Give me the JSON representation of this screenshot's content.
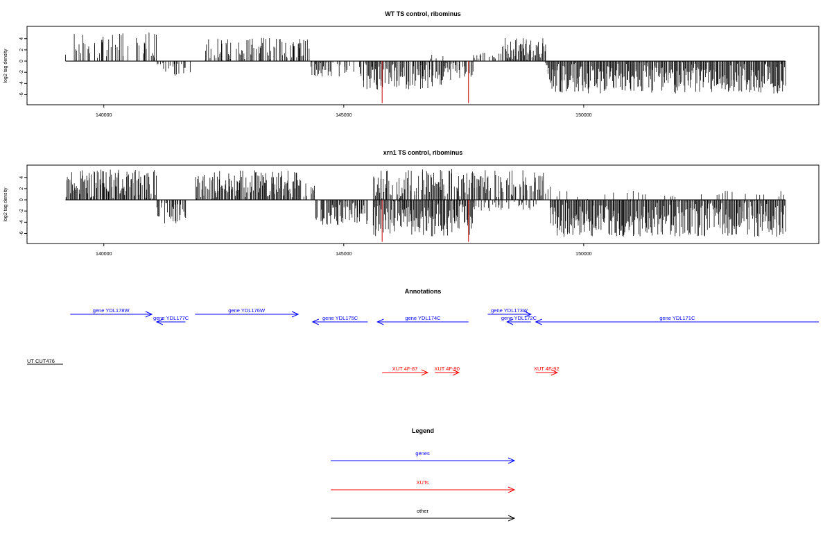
{
  "colors": {
    "gene": "#0000ff",
    "xut": "#ff0000",
    "other": "#000000",
    "bar": "#000000",
    "marker": "#cc0000"
  },
  "chart_data": [
    {
      "type": "bar",
      "title": "WT TS control, ribominus",
      "ylabel": "log2 tag density",
      "xlim": [
        138400,
        154900
      ],
      "ylim": [
        -7.8,
        6.2
      ],
      "xticks": [
        140000,
        145000,
        150000
      ],
      "xtick_labels": [
        "140000",
        "145000",
        "150000"
      ],
      "yticks": [
        4,
        2,
        0,
        -2,
        -4,
        -6
      ],
      "ytick_labels": [
        "4",
        "2",
        "0",
        "-2",
        "-4",
        "-6"
      ],
      "data_range": [
        139200,
        154200
      ],
      "segments": [
        {
          "from": 139200,
          "to": 141100,
          "sign": 1,
          "density": 0.45,
          "max": 5.2
        },
        {
          "from": 141100,
          "to": 141800,
          "sign": -1,
          "density": 0.5,
          "max": 2.6
        },
        {
          "from": 142100,
          "to": 144300,
          "sign": 1,
          "density": 0.5,
          "max": 4.2
        },
        {
          "from": 144300,
          "to": 145400,
          "sign": -1,
          "density": 0.6,
          "max": 2.8
        },
        {
          "from": 145400,
          "to": 147100,
          "sign": -1,
          "density": 0.9,
          "max": 5.2
        },
        {
          "from": 146800,
          "to": 147100,
          "sign": 1,
          "density": 0.2,
          "max": 1.2
        },
        {
          "from": 147100,
          "to": 147700,
          "sign": -1,
          "density": 0.6,
          "max": 3.6
        },
        {
          "from": 147700,
          "to": 148300,
          "sign": 1,
          "density": 0.3,
          "max": 1.5
        },
        {
          "from": 148300,
          "to": 149200,
          "sign": 1,
          "density": 0.9,
          "max": 4.2
        },
        {
          "from": 149200,
          "to": 154200,
          "sign": -1,
          "density": 1.0,
          "max": 5.8
        }
      ],
      "markers": [
        {
          "x": 145800,
          "y": -7.5
        },
        {
          "x": 147600,
          "y": -7.5
        }
      ]
    },
    {
      "type": "bar",
      "title": "xrn1 TS control, ribominus",
      "ylabel": "log2 tag density",
      "xlim": [
        138400,
        154900
      ],
      "ylim": [
        -7.8,
        6.2
      ],
      "xticks": [
        140000,
        145000,
        150000
      ],
      "xtick_labels": [
        "140000",
        "145000",
        "150000"
      ],
      "yticks": [
        4,
        2,
        0,
        -2,
        -4,
        -6
      ],
      "ytick_labels": [
        "4",
        "2",
        "0",
        "-2",
        "-4",
        "-6"
      ],
      "data_range": [
        139200,
        154200
      ],
      "segments": [
        {
          "from": 139200,
          "to": 141100,
          "sign": 1,
          "density": 0.9,
          "max": 5.4
        },
        {
          "from": 141100,
          "to": 141700,
          "sign": -1,
          "density": 0.8,
          "max": 4.2
        },
        {
          "from": 141900,
          "to": 144100,
          "sign": 1,
          "density": 0.9,
          "max": 5.3
        },
        {
          "from": 144100,
          "to": 144400,
          "sign": 1,
          "density": 0.7,
          "max": 3.0
        },
        {
          "from": 144400,
          "to": 145500,
          "sign": -1,
          "density": 0.9,
          "max": 4.6
        },
        {
          "from": 145600,
          "to": 147700,
          "sign": -1,
          "density": 1.0,
          "max": 6.5
        },
        {
          "from": 145600,
          "to": 149300,
          "sign": 1,
          "density": 0.7,
          "max": 5.5
        },
        {
          "from": 147700,
          "to": 149000,
          "sign": -1,
          "density": 0.3,
          "max": 2.0
        },
        {
          "from": 149300,
          "to": 154200,
          "sign": -1,
          "density": 1.0,
          "max": 6.6
        },
        {
          "from": 149300,
          "to": 154200,
          "sign": 1,
          "density": 0.08,
          "max": 1.6
        }
      ],
      "markers": [
        {
          "x": 145800,
          "y": -7.5
        },
        {
          "x": 147600,
          "y": -7.5
        }
      ]
    }
  ],
  "annotations": {
    "title": "Annotations",
    "genes": [
      {
        "label": "gene YDL178W",
        "from": 139300,
        "to": 141000,
        "strand": "+",
        "row": 0
      },
      {
        "label": "gene YDL177C",
        "from": 141100,
        "to": 141700,
        "strand": "-",
        "row": 1
      },
      {
        "label": "gene YDL176W",
        "from": 141900,
        "to": 144050,
        "strand": "+",
        "row": 0
      },
      {
        "label": "gene YDL175C",
        "from": 144350,
        "to": 145500,
        "strand": "-",
        "row": 1
      },
      {
        "label": "gene YDL174C",
        "from": 145700,
        "to": 147600,
        "strand": "-",
        "row": 1
      },
      {
        "label": "gene YDL173W",
        "from": 148000,
        "to": 148900,
        "strand": "+",
        "row": 0
      },
      {
        "label": "gene YDL172C",
        "from": 148400,
        "to": 148900,
        "strand": "-",
        "row": 1
      },
      {
        "label": "gene YDL171C",
        "from": 149000,
        "to": 154900,
        "strand": "-",
        "row": 1
      }
    ],
    "other": [
      {
        "label": "UT CUT476",
        "from": 138400,
        "to": 139150,
        "strand": ""
      }
    ],
    "xuts": [
      {
        "label": "XUT 4F-87",
        "from": 145800,
        "to": 146750,
        "strand": "+"
      },
      {
        "label": "XUT 4F-90",
        "from": 146900,
        "to": 147400,
        "strand": "+"
      },
      {
        "label": "XUT 4F-92",
        "from": 149000,
        "to": 149450,
        "strand": "+"
      }
    ]
  },
  "legend": {
    "title": "Legend",
    "items": [
      {
        "label": "genes",
        "color": "#0000ff"
      },
      {
        "label": "XUTs",
        "color": "#ff0000"
      },
      {
        "label": "other",
        "color": "#000000"
      }
    ]
  }
}
